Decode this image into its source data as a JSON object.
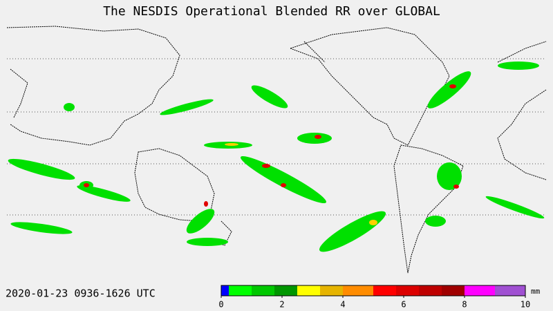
{
  "title": "The NESDIS  Operational  Blended RR over GLOBAL",
  "time_label": "2020-01-23  0936-1626  UTC",
  "colorbar": {
    "range": [
      0,
      10
    ],
    "ticks": [
      0,
      2,
      4,
      6,
      8,
      10
    ],
    "unit": "mm",
    "levels": [
      0,
      0.25,
      1,
      1.75,
      2.5,
      3.25,
      4,
      5,
      5.75,
      6.5,
      7.25,
      8,
      9,
      10
    ],
    "colors": [
      "#0000ff",
      "#00ff00",
      "#00c800",
      "#009600",
      "#ffff00",
      "#e6b400",
      "#ff8c00",
      "#ff0000",
      "#dc0000",
      "#be0000",
      "#a00000",
      "#ff00ff",
      "#a050d2"
    ]
  }
}
